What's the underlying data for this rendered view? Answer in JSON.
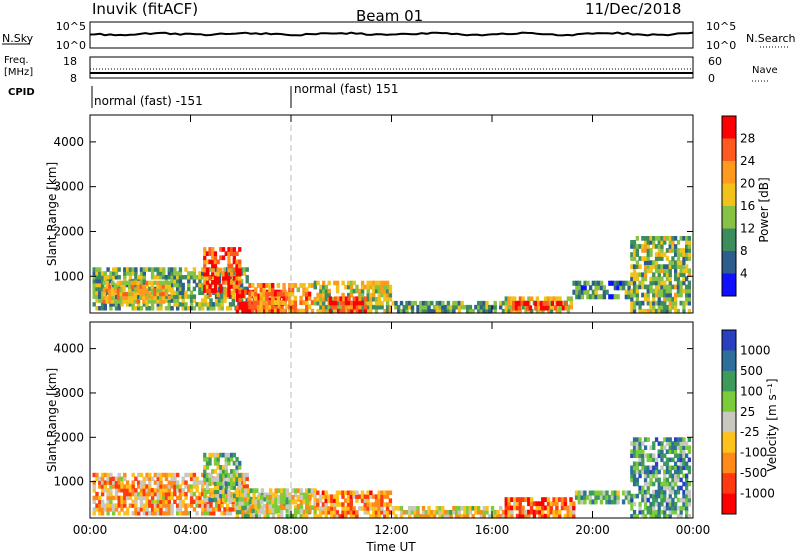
{
  "header": {
    "station": "Inuvik (fitACF)",
    "beam": "Beam 01",
    "date": "11/Dec/2018"
  },
  "top_panels": {
    "nsky_label": "N.Sky",
    "nsky_ticks": [
      "10^5",
      "10^0"
    ],
    "nsearch_label": "N.Search",
    "nsearch_ticks": [
      "10^5",
      "10^0"
    ],
    "freq_label": "Freq.",
    "freq_unit": "[MHz]",
    "freq_ticks": [
      "18",
      "8"
    ],
    "nave_label": "Nave",
    "nave_ticks": [
      "60",
      "0"
    ],
    "cpid_label": "CPID",
    "cpid_segments": [
      {
        "text": "normal (fast) -151",
        "start_hour": 0
      },
      {
        "text": "normal (fast) 151",
        "start_hour": 8
      }
    ]
  },
  "chart_data": [
    {
      "type": "heatmap",
      "title": "Power",
      "ylabel": "Slant Range [km]",
      "xlabel": "",
      "x_ticks": [
        "00:00",
        "04:00",
        "08:00",
        "12:00",
        "16:00",
        "20:00",
        "00:00"
      ],
      "xlim_hours": [
        0,
        24
      ],
      "y_ticks": [
        1000,
        2000,
        3000,
        4000
      ],
      "ylim": [
        180,
        4600
      ],
      "colorbar_label": "Power [dB]",
      "colorbar_ticks": [
        "28",
        "24",
        "20",
        "16",
        "12",
        "8",
        "4"
      ],
      "colorbar_colors": [
        "#ff0000",
        "#ff5a1f",
        "#ff9a1e",
        "#f2c21a",
        "#88c244",
        "#3c8c5e",
        "#2d5d8c",
        "#1010ff"
      ],
      "bands": [
        {
          "t0": 0.1,
          "t1": 6.3,
          "r0": 250,
          "r1": 1200,
          "level": 0.38
        },
        {
          "t0": 0.5,
          "t1": 3.2,
          "r0": 400,
          "r1": 900,
          "level": 0.6
        },
        {
          "t0": 4.5,
          "t1": 6.0,
          "r0": 550,
          "r1": 1650,
          "level": 0.82
        },
        {
          "t0": 5.8,
          "t1": 7.8,
          "r0": 180,
          "r1": 700,
          "level": 0.95
        },
        {
          "t0": 6.3,
          "t1": 8.9,
          "r0": 180,
          "r1": 850,
          "level": 0.7
        },
        {
          "t0": 8.9,
          "t1": 12.0,
          "r0": 180,
          "r1": 900,
          "level": 0.48
        },
        {
          "t0": 9.5,
          "t1": 11.0,
          "r0": 180,
          "r1": 550,
          "level": 0.9
        },
        {
          "t0": 12.0,
          "t1": 16.5,
          "r0": 180,
          "r1": 450,
          "level": 0.35
        },
        {
          "t0": 16.5,
          "t1": 19.2,
          "r0": 180,
          "r1": 550,
          "level": 0.55
        },
        {
          "t0": 16.8,
          "t1": 19.0,
          "r0": 250,
          "r1": 450,
          "level": 0.93
        },
        {
          "t0": 19.2,
          "t1": 21.5,
          "r0": 500,
          "r1": 900,
          "level": 0.3
        },
        {
          "t0": 21.5,
          "t1": 23.9,
          "r0": 180,
          "r1": 1900,
          "level": 0.42
        }
      ]
    },
    {
      "type": "heatmap",
      "title": "Velocity",
      "ylabel": "Slant Range [km]",
      "xlabel": "Time UT",
      "x_ticks": [
        "00:00",
        "04:00",
        "08:00",
        "12:00",
        "16:00",
        "20:00",
        "00:00"
      ],
      "xlim_hours": [
        0,
        24
      ],
      "y_ticks": [
        1000,
        2000,
        3000,
        4000
      ],
      "ylim": [
        180,
        4600
      ],
      "colorbar_label": "Velocity [m s⁻¹]",
      "colorbar_ticks": [
        "1000",
        "500",
        "100",
        "25",
        "-25",
        "-100",
        "-500",
        "-1000"
      ],
      "colorbar_colors": [
        "#2a3fbf",
        "#2d6f9a",
        "#3d9a5a",
        "#7ccc3a",
        "#c8c8c0",
        "#ffc21a",
        "#ff8a1a",
        "#ff3a10",
        "#ff0000"
      ],
      "bands": [
        {
          "t0": 0.1,
          "t1": 6.3,
          "r0": 250,
          "r1": 1200,
          "level": 0.35
        },
        {
          "t0": 4.5,
          "t1": 6.0,
          "r0": 550,
          "r1": 1650,
          "level": 0.6
        },
        {
          "t0": 5.8,
          "t1": 9.0,
          "r0": 180,
          "r1": 850,
          "level": 0.5
        },
        {
          "t0": 6.2,
          "t1": 8.8,
          "r0": 300,
          "r1": 700,
          "level": 0.48
        },
        {
          "t0": 9.0,
          "t1": 12.0,
          "r0": 180,
          "r1": 800,
          "level": 0.3
        },
        {
          "t0": 12.0,
          "t1": 16.5,
          "r0": 180,
          "r1": 450,
          "level": 0.45
        },
        {
          "t0": 16.5,
          "t1": 19.3,
          "r0": 180,
          "r1": 650,
          "level": 0.25
        },
        {
          "t0": 19.3,
          "t1": 21.5,
          "r0": 500,
          "r1": 800,
          "level": 0.65
        },
        {
          "t0": 21.5,
          "t1": 23.9,
          "r0": 180,
          "r1": 2000,
          "level": 0.7
        }
      ]
    }
  ]
}
